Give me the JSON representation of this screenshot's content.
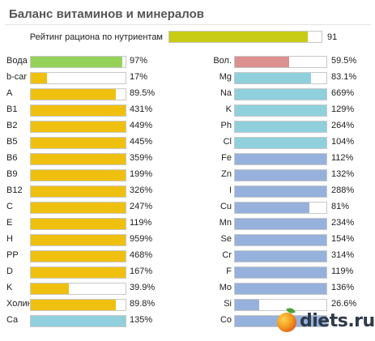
{
  "title": "Баланс витаминов и минералов",
  "rating": {
    "label": "Рейтинг рациона по нутриентам",
    "value": "91",
    "fraction": 0.91,
    "color": "#c8cc14"
  },
  "colors": {
    "green": "#94d25a",
    "yellow": "#f0c010",
    "cyan": "#90d0dc",
    "pink": "#dc9090",
    "blue": "#96b1dc"
  },
  "left_items": [
    {
      "label": "Вода",
      "value": "97%",
      "percent": 97,
      "color": "#94d25a"
    },
    {
      "label": "b-car",
      "value": "17%",
      "percent": 17,
      "color": "#f0c010"
    },
    {
      "label": "A",
      "value": "89.5%",
      "percent": 89.5,
      "color": "#f0c010"
    },
    {
      "label": "B1",
      "value": "431%",
      "percent": 431,
      "color": "#f0c010"
    },
    {
      "label": "B2",
      "value": "449%",
      "percent": 449,
      "color": "#f0c010"
    },
    {
      "label": "B5",
      "value": "445%",
      "percent": 445,
      "color": "#f0c010"
    },
    {
      "label": "B6",
      "value": "359%",
      "percent": 359,
      "color": "#f0c010"
    },
    {
      "label": "B9",
      "value": "199%",
      "percent": 199,
      "color": "#f0c010"
    },
    {
      "label": "B12",
      "value": "326%",
      "percent": 326,
      "color": "#f0c010"
    },
    {
      "label": "C",
      "value": "247%",
      "percent": 247,
      "color": "#f0c010"
    },
    {
      "label": "E",
      "value": "119%",
      "percent": 119,
      "color": "#f0c010"
    },
    {
      "label": "H",
      "value": "959%",
      "percent": 959,
      "color": "#f0c010"
    },
    {
      "label": "PP",
      "value": "468%",
      "percent": 468,
      "color": "#f0c010"
    },
    {
      "label": "D",
      "value": "167%",
      "percent": 167,
      "color": "#f0c010"
    },
    {
      "label": "K",
      "value": "39.9%",
      "percent": 39.9,
      "color": "#f0c010"
    },
    {
      "label": "Холин",
      "value": "89.8%",
      "percent": 89.8,
      "color": "#f0c010"
    },
    {
      "label": "Ca",
      "value": "135%",
      "percent": 135,
      "color": "#90d0dc"
    }
  ],
  "right_items": [
    {
      "label": "Вол.",
      "value": "59.5%",
      "percent": 59.5,
      "color": "#dc9090"
    },
    {
      "label": "Mg",
      "value": "83.1%",
      "percent": 83.1,
      "color": "#90d0dc"
    },
    {
      "label": "Na",
      "value": "669%",
      "percent": 669,
      "color": "#90d0dc"
    },
    {
      "label": "K",
      "value": "129%",
      "percent": 129,
      "color": "#90d0dc"
    },
    {
      "label": "Ph",
      "value": "264%",
      "percent": 264,
      "color": "#90d0dc"
    },
    {
      "label": "Cl",
      "value": "104%",
      "percent": 104,
      "color": "#90d0dc"
    },
    {
      "label": "Fe",
      "value": "112%",
      "percent": 112,
      "color": "#96b1dc"
    },
    {
      "label": "Zn",
      "value": "132%",
      "percent": 132,
      "color": "#96b1dc"
    },
    {
      "label": "I",
      "value": "288%",
      "percent": 288,
      "color": "#96b1dc"
    },
    {
      "label": "Cu",
      "value": "81%",
      "percent": 81,
      "color": "#96b1dc"
    },
    {
      "label": "Mn",
      "value": "234%",
      "percent": 234,
      "color": "#96b1dc"
    },
    {
      "label": "Se",
      "value": "154%",
      "percent": 154,
      "color": "#96b1dc"
    },
    {
      "label": "Cr",
      "value": "314%",
      "percent": 314,
      "color": "#96b1dc"
    },
    {
      "label": "F",
      "value": "119%",
      "percent": 119,
      "color": "#96b1dc"
    },
    {
      "label": "Mo",
      "value": "136%",
      "percent": 136,
      "color": "#96b1dc"
    },
    {
      "label": "Si",
      "value": "26.6%",
      "percent": 26.6,
      "color": "#96b1dc"
    },
    {
      "label": "Co",
      "value": "",
      "percent": 100,
      "color": "#96b1dc"
    }
  ],
  "watermark": {
    "brand": "diets.ru",
    "icon": "apple-icon"
  }
}
